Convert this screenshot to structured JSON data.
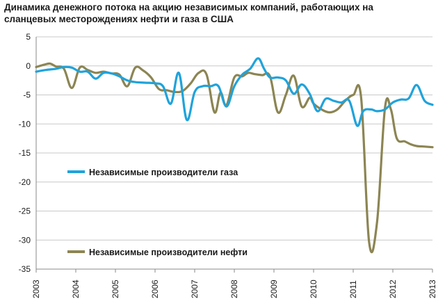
{
  "title_lines": [
    "Динамика денежного потока на акцию независимых компаний, работающих на",
    "сланцевых месторождениях нефти и газа в США"
  ],
  "colors": {
    "gas": "#1fa3db",
    "oil": "#8c8553",
    "grid": "#c8c8c8",
    "axis": "#8a8a8a"
  },
  "chart_data": {
    "type": "line",
    "title": "Динамика денежного потока на акцию независимых компаний, работающих на сланцевых месторождениях нефти и газа в США",
    "xlabel": "",
    "ylabel": "",
    "xlim": [
      2003,
      2013
    ],
    "ylim": [
      -35,
      5
    ],
    "yticks": [
      5,
      0,
      -5,
      -10,
      -15,
      -20,
      -25,
      -30,
      -35
    ],
    "xticks": [
      "2003",
      "2004",
      "2005",
      "2006",
      "2007",
      "2008",
      "2009",
      "2010",
      "2011",
      "2012",
      "2013"
    ],
    "grid": "horizontal",
    "legend_placement": "inside-left",
    "series": [
      {
        "name": "Независимые производители газа",
        "color": "#1fa3db",
        "x": [
          2003.0,
          2003.25,
          2003.5,
          2003.7,
          2003.9,
          2004.1,
          2004.3,
          2004.5,
          2004.7,
          2004.9,
          2005.1,
          2005.3,
          2005.5,
          2005.75,
          2006.0,
          2006.2,
          2006.4,
          2006.6,
          2006.8,
          2007.0,
          2007.2,
          2007.4,
          2007.6,
          2007.8,
          2008.0,
          2008.2,
          2008.4,
          2008.6,
          2008.75,
          2008.9,
          2009.1,
          2009.3,
          2009.5,
          2009.7,
          2009.9,
          2010.1,
          2010.3,
          2010.5,
          2010.7,
          2010.9,
          2011.1,
          2011.25,
          2011.45,
          2011.6,
          2011.8,
          2012.0,
          2012.2,
          2012.4,
          2012.6,
          2012.8,
          2013.0
        ],
        "values": [
          -1.0,
          -0.7,
          -0.5,
          -0.2,
          -0.3,
          -1.0,
          -1.0,
          -2.2,
          -1.2,
          -1.3,
          -1.8,
          -2.5,
          -2.8,
          -2.9,
          -3.0,
          -3.5,
          -6.5,
          -1.2,
          -9.3,
          -4.5,
          -3.5,
          -3.5,
          -3.5,
          -7.0,
          -3.5,
          -1.5,
          -0.5,
          1.3,
          -0.5,
          -2.0,
          -2.0,
          -2.5,
          -4.8,
          -3.2,
          -4.8,
          -7.8,
          -5.7,
          -6.0,
          -6.3,
          -6.0,
          -10.3,
          -7.8,
          -7.5,
          -7.8,
          -7.5,
          -6.3,
          -5.8,
          -5.6,
          -3.3,
          -6.0,
          -6.7
        ]
      },
      {
        "name": "Независимые производители нефти",
        "color": "#8c8553",
        "x": [
          2003.0,
          2003.2,
          2003.35,
          2003.5,
          2003.7,
          2003.9,
          2004.1,
          2004.3,
          2004.5,
          2004.7,
          2004.9,
          2005.1,
          2005.3,
          2005.5,
          2005.7,
          2005.9,
          2006.1,
          2006.3,
          2006.5,
          2006.7,
          2006.9,
          2007.1,
          2007.3,
          2007.5,
          2007.65,
          2007.8,
          2008.0,
          2008.2,
          2008.35,
          2008.5,
          2008.7,
          2008.9,
          2009.1,
          2009.3,
          2009.5,
          2009.7,
          2009.9,
          2010.0,
          2010.2,
          2010.4,
          2010.6,
          2010.8,
          2011.0,
          2011.2,
          2011.4,
          2011.6,
          2011.8,
          2011.95,
          2012.1,
          2012.3,
          2012.45,
          2012.6,
          2012.8,
          2013.0
        ],
        "values": [
          -0.2,
          0.2,
          0.4,
          -0.1,
          -0.5,
          -3.8,
          -0.3,
          -0.7,
          -1.2,
          -1.0,
          -1.3,
          -1.5,
          -3.5,
          -0.3,
          -0.8,
          -2.0,
          -4.0,
          -4.2,
          -4.5,
          -4.3,
          -3.0,
          -1.2,
          -1.5,
          -8.0,
          -4.6,
          -6.8,
          -2.0,
          -1.8,
          -1.2,
          -1.4,
          -1.6,
          -1.8,
          -8.0,
          -5.0,
          -1.7,
          -7.0,
          -5.5,
          -6.5,
          -7.5,
          -8.0,
          -7.5,
          -6.0,
          -5.0,
          -5.5,
          -30.3,
          -27.0,
          -7.3,
          -7.5,
          -12.5,
          -13.0,
          -13.5,
          -13.8,
          -13.9,
          -14.0
        ]
      }
    ]
  }
}
